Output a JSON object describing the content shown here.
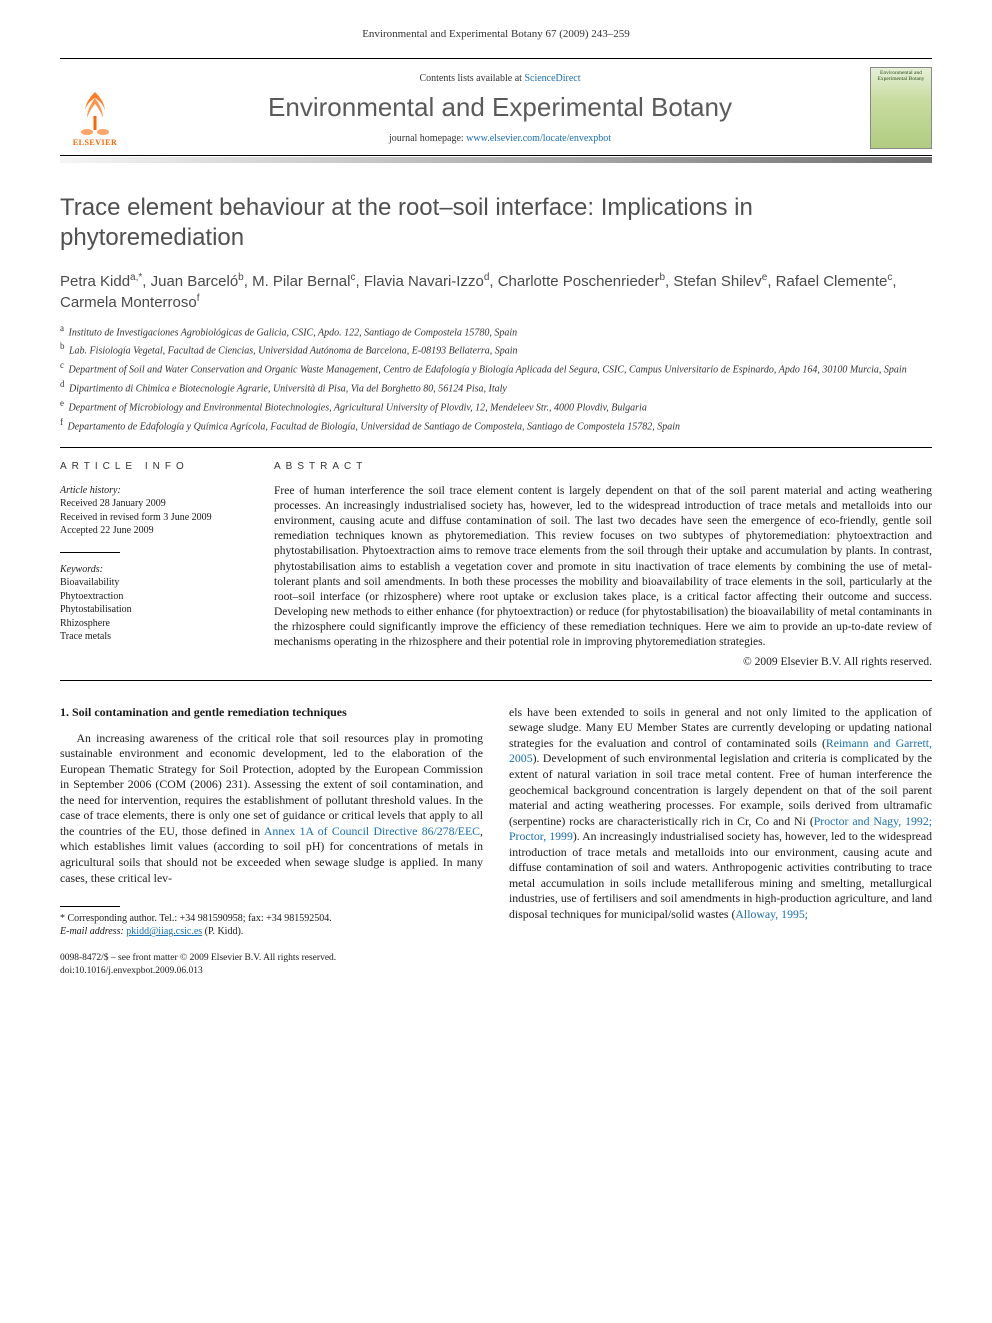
{
  "running_head": "Environmental and Experimental Botany 67 (2009) 243–259",
  "masthead": {
    "contents_prefix": "Contents lists available at ",
    "contents_link_text": "ScienceDirect",
    "journal_name": "Environmental and Experimental Botany",
    "homepage_prefix": "journal homepage: ",
    "homepage_link_text": "www.elsevier.com/locate/envexpbot",
    "publisher_label": "ELSEVIER",
    "cover_caption": "Environmental and Experimental Botany"
  },
  "title": "Trace element behaviour at the root–soil interface: Implications in phytoremediation",
  "authors_html": "Petra Kidd<sup>a,*</sup>, Juan Barceló<sup>b</sup>, M. Pilar Bernal<sup>c</sup>, Flavia Navari-Izzo<sup>d</sup>, Charlotte Poschenrieder<sup>b</sup>, Stefan Shilev<sup>e</sup>, Rafael Clemente<sup>c</sup>, Carmela Monterroso<sup>f</sup>",
  "affiliations": [
    {
      "marker": "a",
      "text": "Instituto de Investigaciones Agrobiológicas de Galicia, CSIC, Apdo. 122, Santiago de Compostela 15780, Spain"
    },
    {
      "marker": "b",
      "text": "Lab. Fisiología Vegetal, Facultad de Ciencias, Universidad Autónoma de Barcelona, E-08193 Bellaterra, Spain"
    },
    {
      "marker": "c",
      "text": "Department of Soil and Water Conservation and Organic Waste Management, Centro de Edafología y Biología Aplicada del Segura, CSIC, Campus Universitario de Espinardo, Apdo 164, 30100 Murcia, Spain"
    },
    {
      "marker": "d",
      "text": "Dipartimento di Chimica e Biotecnologie Agrarie, Università di Pisa, Via del Borghetto 80, 56124 Pisa, Italy"
    },
    {
      "marker": "e",
      "text": "Department of Microbiology and Environmental Biotechnologies, Agricultural University of Plovdiv, 12, Mendeleev Str., 4000 Plovdiv, Bulgaria"
    },
    {
      "marker": "f",
      "text": "Departamento de Edafología y Química Agrícola, Facultad de Biología, Universidad de Santiago de Compostela, Santiago de Compostela 15782, Spain"
    }
  ],
  "info": {
    "heading": "ARTICLE INFO",
    "history_label": "Article history:",
    "history": [
      "Received 28 January 2009",
      "Received in revised form 3 June 2009",
      "Accepted 22 June 2009"
    ],
    "keywords_label": "Keywords:",
    "keywords": [
      "Bioavailability",
      "Phytoextraction",
      "Phytostabilisation",
      "Rhizosphere",
      "Trace metals"
    ]
  },
  "abstract": {
    "heading": "ABSTRACT",
    "text": "Free of human interference the soil trace element content is largely dependent on that of the soil parent material and acting weathering processes. An increasingly industrialised society has, however, led to the widespread introduction of trace metals and metalloids into our environment, causing acute and diffuse contamination of soil. The last two decades have seen the emergence of eco-friendly, gentle soil remediation techniques known as phytoremediation. This review focuses on two subtypes of phytoremediation: phytoextraction and phytostabilisation. Phytoextraction aims to remove trace elements from the soil through their uptake and accumulation by plants. In contrast, phytostabilisation aims to establish a vegetation cover and promote in situ inactivation of trace elements by combining the use of metal-tolerant plants and soil amendments. In both these processes the mobility and bioavailability of trace elements in the soil, particularly at the root–soil interface (or rhizosphere) where root uptake or exclusion takes place, is a critical factor affecting their outcome and success. Developing new methods to either enhance (for phytoextraction) or reduce (for phytostabilisation) the bioavailability of metal contaminants in the rhizosphere could significantly improve the efficiency of these remediation techniques. Here we aim to provide an up-to-date review of mechanisms operating in the rhizosphere and their potential role in improving phytoremediation strategies.",
    "copyright": "© 2009 Elsevier B.V. All rights reserved."
  },
  "section_heading": "1. Soil contamination and gentle remediation techniques",
  "body": {
    "col1_pre": "An increasing awareness of the critical role that soil resources play in promoting sustainable environment and economic development, led to the elaboration of the European Thematic Strategy for Soil Protection, adopted by the European Commission in September 2006 (COM (2006) 231). Assessing the extent of soil contamination, and the need for intervention, requires the establishment of pollutant threshold values. In the case of trace elements, there is only one set of guidance or critical levels that apply to all the countries of the EU, those defined in ",
    "col1_link": "Annex 1A of Council Directive 86/278/EEC",
    "col1_post": ", which establishes limit values (according to soil pH) for concentrations of metals in agricultural soils that should not be exceeded when sewage sludge is applied. In many cases, these critical lev-",
    "col2_part1": "els have been extended to soils in general and not only limited to the application of sewage sludge. Many EU Member States are currently developing or updating national strategies for the evaluation and control of contaminated soils (",
    "col2_link1": "Reimann and Garrett, 2005",
    "col2_part2": "). Development of such environmental legislation and criteria is complicated by the extent of natural variation in soil trace metal content. Free of human interference the geochemical background concentration is largely dependent on that of the soil parent material and acting weathering processes. For example, soils derived from ultramafic (serpentine) rocks are characteristically rich in Cr, Co and Ni (",
    "col2_link2": "Proctor and Nagy, 1992; Proctor, 1999",
    "col2_part3": "). An increasingly industrialised society has, however, led to the widespread introduction of trace metals and metalloids into our environment, causing acute and diffuse contamination of soil and waters. Anthropogenic activities contributing to trace metal accumulation in soils include metalliferous mining and smelting, metallurgical industries, use of fertilisers and soil amendments in high-production agriculture, and land disposal techniques for municipal/solid wastes (",
    "col2_link3": "Alloway, 1995;"
  },
  "footnote": {
    "corr_line": "* Corresponding author. Tel.: +34 981590958; fax: +34 981592504.",
    "email_label": "E-mail address: ",
    "email_link": "pkidd@iiag.csic.es",
    "email_tail": " (P. Kidd)."
  },
  "footer": {
    "line1": "0098-8472/$ – see front matter © 2009 Elsevier B.V. All rights reserved.",
    "line2": "doi:10.1016/j.envexpbot.2009.06.013"
  },
  "colors": {
    "link": "#1a6fb0",
    "publisher_orange": "#ff6600",
    "title_gray": "#505050"
  }
}
